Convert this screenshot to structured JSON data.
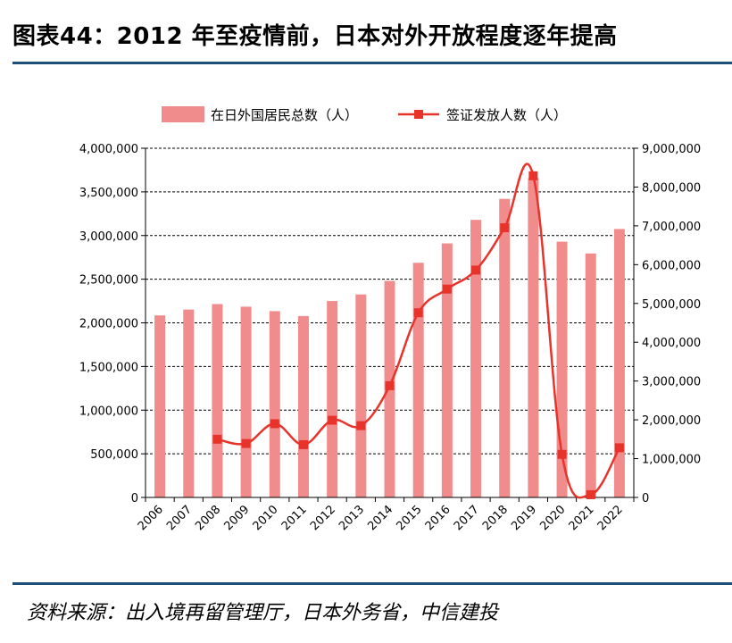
{
  "header": {
    "title": "图表44：2012 年至疫情前，日本对外开放程度逐年提高"
  },
  "footer": {
    "source": "资料来源：出入境再留管理厅，日本外务省，中信建投"
  },
  "colors": {
    "bar": "#f08c8c",
    "line": "#e8332b",
    "rule": "#1f4e79"
  },
  "chart_data": {
    "type": "bar+line",
    "categories": [
      "2006",
      "2007",
      "2008",
      "2009",
      "2010",
      "2011",
      "2012",
      "2013",
      "2014",
      "2015",
      "2016",
      "2017",
      "2018",
      "2019",
      "2020",
      "2021",
      "2022"
    ],
    "series": [
      {
        "name": "在日外国居民总数（人）",
        "type": "bar",
        "axis": "left",
        "values": [
          2085000,
          2152000,
          2215000,
          2185000,
          2134000,
          2078000,
          2250000,
          2325000,
          2480000,
          2688000,
          2910000,
          3180000,
          3420000,
          3660000,
          2930000,
          2795000,
          3075000
        ]
      },
      {
        "name": "签证发放人数（人）",
        "type": "line",
        "axis": "right",
        "values": [
          null,
          null,
          1500000,
          1390000,
          1900000,
          1360000,
          1990000,
          1850000,
          2880000,
          4760000,
          5370000,
          5860000,
          6950000,
          8290000,
          1110000,
          70000,
          1280000
        ]
      }
    ],
    "left_axis": {
      "min": 0,
      "max": 4000000,
      "step": 500000,
      "tick_labels": [
        "0",
        "500,000",
        "1,000,000",
        "1,500,000",
        "2,000,000",
        "2,500,000",
        "3,000,000",
        "3,500,000",
        "4,000,000"
      ]
    },
    "right_axis": {
      "min": 0,
      "max": 9000000,
      "step": 1000000,
      "tick_labels": [
        "0",
        "1,000,000",
        "2,000,000",
        "3,000,000",
        "4,000,000",
        "5,000,000",
        "6,000,000",
        "7,000,000",
        "8,000,000",
        "9,000,000"
      ]
    },
    "grid": "dashed horizontal",
    "legend_position": "top-center"
  }
}
